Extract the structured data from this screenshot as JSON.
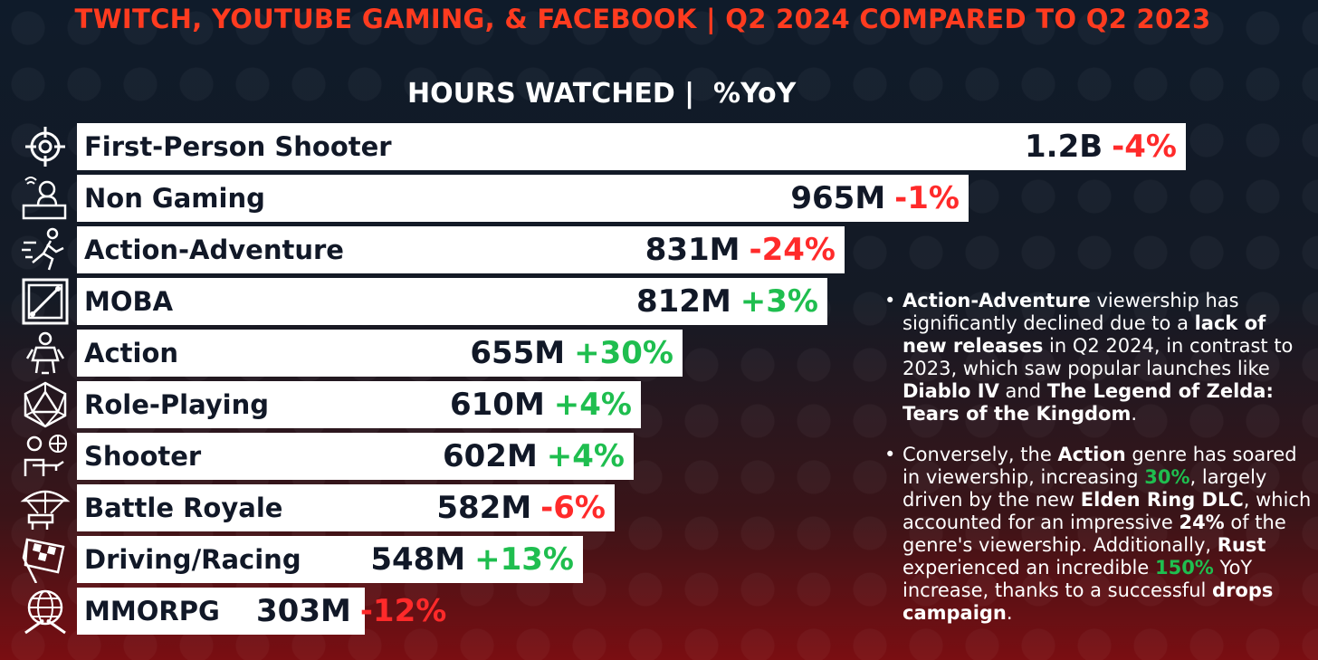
{
  "title": "TWITCH, YOUTUBE GAMING, & FACEBOOK | Q2 2024 COMPARED TO Q2 2023",
  "subtitle": "HOURS WATCHED |  %YoY",
  "colors": {
    "title": "#ff3b1f",
    "negative": "#ff2a2a",
    "positive": "#1fbe4f",
    "bar": "#ffffff",
    "text": "#111827"
  },
  "chart_data": {
    "type": "bar",
    "orientation": "horizontal",
    "title": "TWITCH, YOUTUBE GAMING, & FACEBOOK | Q2 2024 COMPARED TO Q2 2023",
    "subtitle": "HOURS WATCHED |  %YoY",
    "categories": [
      "First-Person Shooter",
      "Non Gaming",
      "Action-Adventure",
      "MOBA",
      "Action",
      "Role-Playing",
      "Shooter",
      "Battle Royale",
      "Driving/Racing",
      "MMORPG"
    ],
    "values": [
      1200000000,
      965000000,
      831000000,
      812000000,
      655000000,
      610000000,
      602000000,
      582000000,
      548000000,
      303000000
    ],
    "value_labels": [
      "1.2B",
      "965M",
      "831M",
      "812M",
      "655M",
      "610M",
      "602M",
      "582M",
      "548M",
      "303M"
    ],
    "yoy_labels": [
      "-4%",
      "-1%",
      "-24%",
      "+3%",
      "+30%",
      "+4%",
      "+4%",
      "-6%",
      "+13%",
      "-12%"
    ],
    "yoy_values": [
      -4,
      -1,
      -24,
      3,
      30,
      4,
      4,
      -6,
      13,
      -12
    ],
    "icons": [
      "crosshair-icon",
      "streamer-icon",
      "running-person-icon",
      "moba-map-icon",
      "warrior-icon",
      "d20-dice-icon",
      "soldier-icon",
      "parachute-icon",
      "checkered-flag-icon",
      "globe-swords-icon"
    ],
    "grid": false,
    "legend": "none"
  },
  "notes": [
    {
      "parts": [
        {
          "text": "Action-Adventure",
          "style": "b"
        },
        {
          "text": " viewership has significantly declined due to a ",
          "style": ""
        },
        {
          "text": "lack of new releases",
          "style": "b"
        },
        {
          "text": " in Q2 2024, in contrast to 2023, which saw popular launches like ",
          "style": ""
        },
        {
          "text": "Diablo IV",
          "style": "b"
        },
        {
          "text": " and ",
          "style": ""
        },
        {
          "text": "The Legend of Zelda: Tears of the Kingdom",
          "style": "b"
        },
        {
          "text": ".",
          "style": ""
        }
      ]
    },
    {
      "parts": [
        {
          "text": "Conversely, the ",
          "style": ""
        },
        {
          "text": "Action",
          "style": "b"
        },
        {
          "text": " genre has soared in viewership, increasing ",
          "style": ""
        },
        {
          "text": "30%",
          "style": "g"
        },
        {
          "text": ", largely driven by the new ",
          "style": ""
        },
        {
          "text": "Elden Ring DLC",
          "style": "b"
        },
        {
          "text": ", which accounted for an impressive ",
          "style": ""
        },
        {
          "text": "24%",
          "style": "b"
        },
        {
          "text": " of the genre's viewership. Additionally, ",
          "style": ""
        },
        {
          "text": "Rust",
          "style": "b"
        },
        {
          "text": " experienced an incredible ",
          "style": ""
        },
        {
          "text": "150%",
          "style": "g"
        },
        {
          "text": " YoY increase, thanks to a successful ",
          "style": ""
        },
        {
          "text": "drops campaign",
          "style": "b"
        },
        {
          "text": ".",
          "style": ""
        }
      ]
    }
  ]
}
